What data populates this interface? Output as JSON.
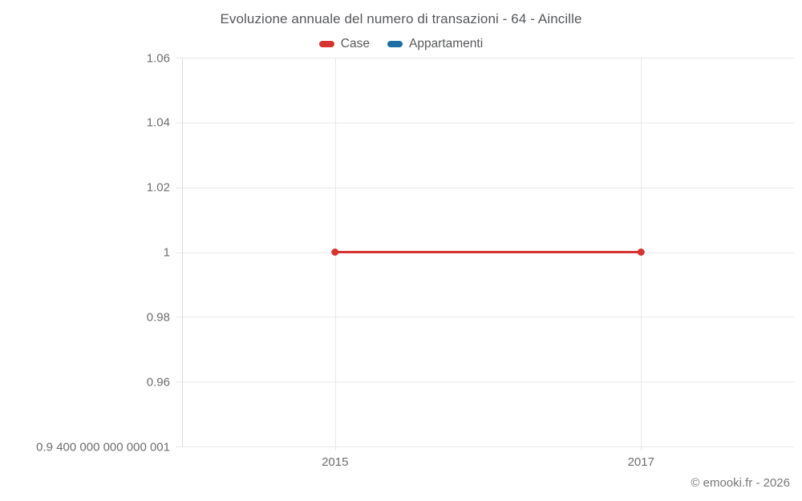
{
  "chart_data": {
    "type": "line",
    "title": "Evoluzione annuale del numero di transazioni - 64 - Aincille",
    "attribution": "© emooki.fr - 2026",
    "legend_position": "top",
    "grid": true,
    "legend": [
      {
        "label": "Case",
        "color": "#d7332f"
      },
      {
        "label": "Appartamenti",
        "color": "#1d6fa5"
      }
    ],
    "x_range": [
      2014,
      2018
    ],
    "y_range": [
      0.94,
      1.06
    ],
    "x_ticks": [
      {
        "value": 2015,
        "label": "2015"
      },
      {
        "value": 2017,
        "label": "2017"
      }
    ],
    "y_ticks": [
      {
        "value": 1.06,
        "label": "1.06"
      },
      {
        "value": 1.04,
        "label": "1.04"
      },
      {
        "value": 1.02,
        "label": "1.02"
      },
      {
        "value": 1.0,
        "label": "1"
      },
      {
        "value": 0.98,
        "label": "0.98"
      },
      {
        "value": 0.96,
        "label": "0.96"
      },
      {
        "value": 0.94,
        "label": "0.9 400 000 000 000 001"
      }
    ],
    "series": [
      {
        "name": "Case",
        "color": "#d7332f",
        "points": [
          {
            "x": 2015,
            "y": 1
          },
          {
            "x": 2017,
            "y": 1
          }
        ]
      },
      {
        "name": "Appartamenti",
        "color": "#1d6fa5",
        "points": []
      }
    ]
  }
}
